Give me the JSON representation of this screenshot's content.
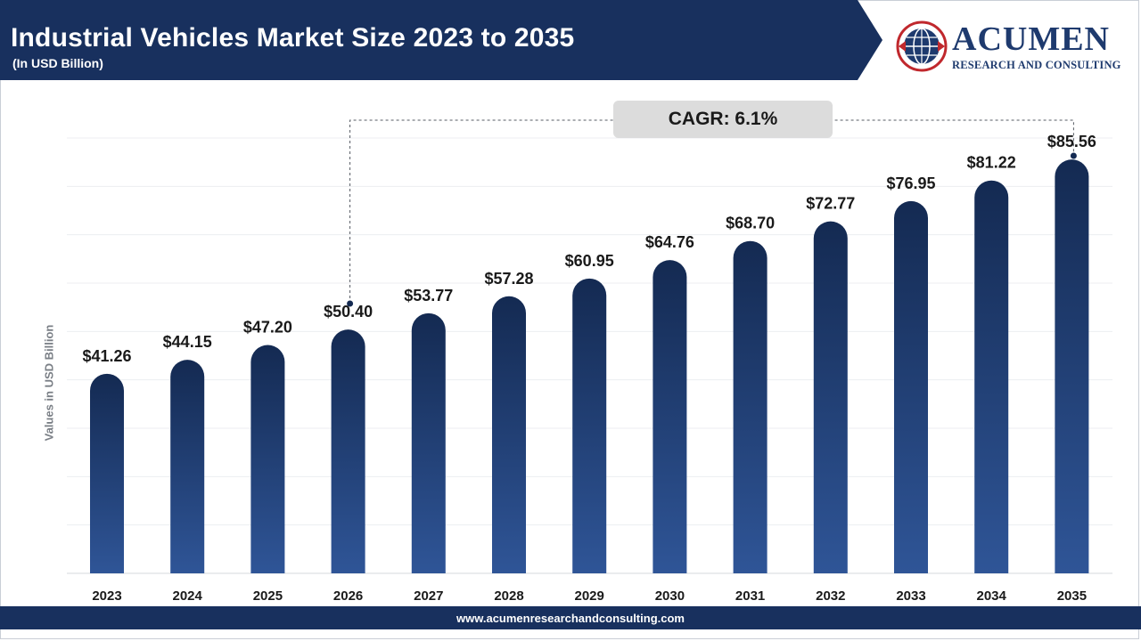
{
  "header": {
    "title": "Industrial Vehicles Market Size 2023 to 2035",
    "subtitle": "(In USD Billion)"
  },
  "logo": {
    "name": "ACUMEN",
    "tagline": "RESEARCH AND CONSULTING",
    "icon": "globe-icon"
  },
  "cagr": {
    "label": "CAGR: 6.1%"
  },
  "footer": {
    "url": "www.acumenresearchandconsulting.com"
  },
  "colors": {
    "header_bg": "#18305e",
    "bar_top": "#142a52",
    "bar_bottom": "#2f5597",
    "cagr_bg": "#dcdcdc",
    "footer_bg": "#18305e"
  },
  "chart_data": {
    "type": "bar",
    "title": "Industrial Vehicles Market Size 2023 to 2035",
    "subtitle": "(In USD Billion)",
    "ylabel": "Values in USD Billion",
    "xlabel": "",
    "categories": [
      "2023",
      "2024",
      "2025",
      "2026",
      "2027",
      "2028",
      "2029",
      "2030",
      "2031",
      "2032",
      "2033",
      "2034",
      "2035"
    ],
    "values": [
      41.26,
      44.15,
      47.2,
      50.4,
      53.77,
      57.28,
      60.95,
      64.76,
      68.7,
      72.77,
      76.95,
      81.22,
      85.56
    ],
    "value_labels": [
      "$41.26",
      "$44.15",
      "$47.20",
      "$50.40",
      "$53.77",
      "$57.28",
      "$60.95",
      "$64.76",
      "$68.70",
      "$72.77",
      "$76.95",
      "$81.22",
      "$85.56"
    ],
    "ylim": [
      0,
      90
    ],
    "grid": true,
    "legend": "none",
    "annotation": "CAGR: 6.1%"
  }
}
